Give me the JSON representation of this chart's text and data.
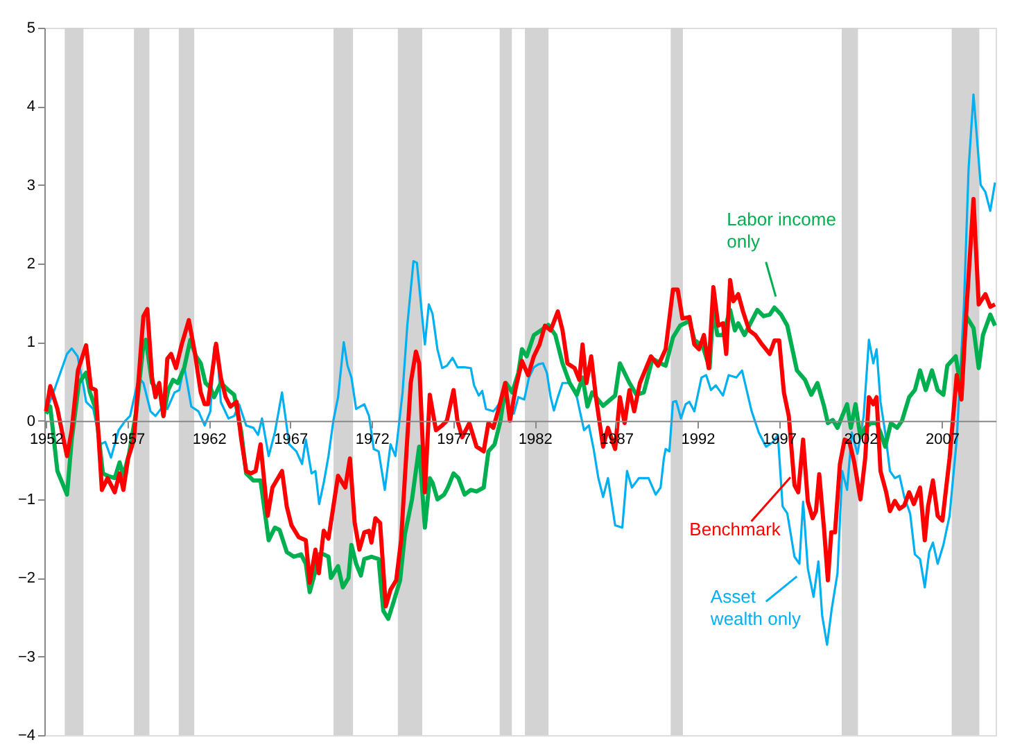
{
  "chart_data": {
    "type": "line",
    "xlim": [
      1951.9,
      2010.3
    ],
    "ylim": [
      -4,
      5
    ],
    "xticks": [
      1952,
      1957,
      1962,
      1967,
      1972,
      1977,
      1982,
      1987,
      1992,
      1997,
      2002,
      2007
    ],
    "yticks": [
      -4,
      -3,
      -2,
      -1,
      0,
      1,
      2,
      3,
      4,
      5
    ],
    "grid": false,
    "legend": false,
    "marker": "none",
    "line_style": "solid",
    "bands": [
      {
        "axis": "x",
        "from": 1953.15,
        "to": 1954.3,
        "color": "#d3d3d3"
      },
      {
        "axis": "x",
        "from": 1957.4,
        "to": 1958.35,
        "color": "#d3d3d3"
      },
      {
        "axis": "x",
        "from": 1960.15,
        "to": 1961.1,
        "color": "#d3d3d3"
      },
      {
        "axis": "x",
        "from": 1969.65,
        "to": 1970.85,
        "color": "#d3d3d3"
      },
      {
        "axis": "x",
        "from": 1973.6,
        "to": 1975.1,
        "color": "#d3d3d3"
      },
      {
        "axis": "x",
        "from": 1979.85,
        "to": 1980.6,
        "color": "#d3d3d3"
      },
      {
        "axis": "x",
        "from": 1981.4,
        "to": 1982.85,
        "color": "#d3d3d3"
      },
      {
        "axis": "x",
        "from": 1990.35,
        "to": 1991.1,
        "color": "#d3d3d3"
      },
      {
        "axis": "x",
        "from": 2000.85,
        "to": 2001.85,
        "color": "#d3d3d3"
      },
      {
        "axis": "x",
        "from": 2007.6,
        "to": 2009.3,
        "color": "#d3d3d3"
      }
    ],
    "series": [
      {
        "name": "Benchmark",
        "color": "#ff0000",
        "x": [
          1952.0,
          1952.26,
          1952.7,
          1953.14,
          1953.29,
          1953.58,
          1953.96,
          1954.46,
          1954.76,
          1955.05,
          1955.43,
          1955.78,
          1956.22,
          1956.52,
          1956.75,
          1957.04,
          1957.4,
          1957.98,
          1958.22,
          1958.51,
          1958.72,
          1958.95,
          1959.21,
          1959.45,
          1959.68,
          1959.98,
          1960.33,
          1960.77,
          1961.15,
          1961.5,
          1961.74,
          1961.94,
          1962.44,
          1962.73,
          1963.03,
          1963.32,
          1963.7,
          1963.99,
          1964.29,
          1964.58,
          1964.87,
          1965.17,
          1965.61,
          1965.9,
          1966.49,
          1966.78,
          1967.07,
          1967.51,
          1967.95,
          1968.19,
          1968.54,
          1968.75,
          1969.05,
          1969.34,
          1969.93,
          1970.37,
          1970.66,
          1970.95,
          1971.24,
          1971.54,
          1971.83,
          1971.98,
          1972.22,
          1972.51,
          1972.86,
          1973.15,
          1973.5,
          1973.8,
          1974.03,
          1974.39,
          1974.71,
          1974.91,
          1975.26,
          1975.56,
          1975.94,
          1976.32,
          1976.61,
          1977.02,
          1977.26,
          1977.55,
          1977.99,
          1978.43,
          1978.87,
          1979.16,
          1979.46,
          1979.75,
          1980.19,
          1980.48,
          1980.84,
          1981.22,
          1981.6,
          1981.95,
          1982.3,
          1982.63,
          1982.98,
          1983.42,
          1983.71,
          1984.01,
          1984.45,
          1984.74,
          1984.94,
          1985.18,
          1985.47,
          1985.76,
          1986.2,
          1986.5,
          1986.94,
          1987.23,
          1987.52,
          1987.82,
          1988.11,
          1988.46,
          1989.14,
          1989.58,
          1990.04,
          1990.49,
          1990.78,
          1991.07,
          1991.5,
          1991.8,
          1992.09,
          1992.39,
          1992.68,
          1992.97,
          1993.27,
          1993.56,
          1993.76,
          1994.0,
          1994.2,
          1994.5,
          1994.79,
          1995.17,
          1995.55,
          1995.96,
          1996.43,
          1996.72,
          1997.01,
          1997.3,
          1997.6,
          1997.95,
          1998.18,
          1998.48,
          1998.77,
          1999.06,
          1999.27,
          1999.47,
          1999.77,
          2000.0,
          2000.21,
          2000.44,
          2000.74,
          2001.03,
          2001.32,
          2001.61,
          2002.0,
          2002.29,
          2002.52,
          2002.79,
          2002.99,
          2003.23,
          2003.58,
          2003.81,
          2004.11,
          2004.4,
          2004.69,
          2004.99,
          2005.28,
          2005.66,
          2005.95,
          2006.15,
          2006.45,
          2006.74,
          2007.03,
          2007.47,
          2007.91,
          2008.2,
          2008.5,
          2008.94,
          2009.26,
          2009.67,
          2009.97,
          2010.26
        ],
        "values": [
          0.12,
          0.44,
          0.15,
          -0.3,
          -0.45,
          -0.12,
          0.64,
          0.96,
          0.42,
          0.39,
          -0.88,
          -0.73,
          -0.91,
          -0.67,
          -0.88,
          -0.48,
          -0.24,
          1.33,
          1.42,
          0.55,
          0.3,
          0.48,
          0.06,
          0.79,
          0.85,
          0.67,
          0.97,
          1.28,
          0.85,
          0.36,
          0.21,
          0.21,
          0.98,
          0.55,
          0.3,
          0.18,
          0.24,
          -0.24,
          -0.64,
          -0.67,
          -0.64,
          -0.3,
          -1.21,
          -0.85,
          -0.64,
          -1.09,
          -1.33,
          -1.48,
          -1.52,
          -2.06,
          -1.64,
          -1.94,
          -1.4,
          -1.5,
          -0.7,
          -0.85,
          -0.48,
          -1.3,
          -1.64,
          -1.42,
          -1.4,
          -1.55,
          -1.24,
          -1.3,
          -2.36,
          -2.15,
          -2.03,
          -1.52,
          -0.73,
          0.48,
          0.88,
          0.73,
          -0.91,
          0.33,
          -0.12,
          -0.06,
          0,
          0.39,
          0,
          -0.21,
          -0.03,
          -0.33,
          -0.39,
          -0.03,
          -0.09,
          0.12,
          0.48,
          0,
          0.42,
          0.76,
          0.58,
          0.82,
          0.97,
          1.21,
          1.15,
          1.39,
          1.15,
          0.73,
          0.67,
          0.52,
          0.97,
          0.48,
          0.82,
          0.3,
          -0.33,
          -0.09,
          -0.36,
          0.3,
          -0.03,
          0.39,
          0.12,
          0.48,
          0.82,
          0.7,
          0.91,
          1.67,
          1.67,
          1.3,
          1.32,
          0.97,
          0.91,
          1.09,
          0.67,
          1.7,
          1.21,
          1.24,
          0.85,
          1.79,
          1.52,
          1.61,
          1.39,
          1.15,
          1.09,
          0.97,
          0.85,
          1.02,
          1.02,
          0.36,
          0.06,
          -0.82,
          -0.91,
          -0.24,
          -1.03,
          -1.24,
          -1.15,
          -0.68,
          -1.39,
          -2.03,
          -1.42,
          -1.42,
          -0.55,
          -0.24,
          -0.27,
          -0.52,
          -1.0,
          -0.48,
          0.3,
          0.21,
          0.3,
          -0.64,
          -0.91,
          -1.15,
          -1.02,
          -1.12,
          -1.08,
          -0.91,
          -1.06,
          -0.85,
          -1.52,
          -1.09,
          -0.76,
          -1.21,
          -1.27,
          -0.48,
          0.58,
          0.27,
          1.39,
          2.82,
          1.48,
          1.61,
          1.45,
          1.48
        ]
      },
      {
        "name": "Labor income only",
        "color": "#00b050",
        "x": [
          1952.0,
          1952.26,
          1952.7,
          1953.29,
          1953.58,
          1954.02,
          1954.46,
          1954.7,
          1955.05,
          1955.49,
          1955.78,
          1956.22,
          1956.52,
          1956.75,
          1957.1,
          1957.54,
          1957.98,
          1958.13,
          1958.51,
          1959.0,
          1959.21,
          1959.5,
          1959.8,
          1960.09,
          1960.48,
          1960.86,
          1961.21,
          1961.5,
          1961.79,
          1962.09,
          1962.32,
          1962.73,
          1963.2,
          1963.55,
          1963.99,
          1964.29,
          1964.73,
          1965.17,
          1965.67,
          1966.05,
          1966.34,
          1966.78,
          1967.22,
          1967.66,
          1967.95,
          1968.19,
          1968.54,
          1968.75,
          1969.05,
          1969.34,
          1969.49,
          1969.93,
          1970.22,
          1970.57,
          1970.75,
          1971.04,
          1971.33,
          1971.54,
          1971.98,
          1972.42,
          1972.71,
          1973.01,
          1973.3,
          1973.74,
          1974.03,
          1974.47,
          1974.91,
          1975.26,
          1975.56,
          1975.73,
          1976.03,
          1976.44,
          1976.67,
          1977.02,
          1977.32,
          1977.7,
          1978.08,
          1978.43,
          1978.87,
          1979.16,
          1979.54,
          1979.9,
          1980.24,
          1980.62,
          1981.0,
          1981.22,
          1981.51,
          1981.95,
          1982.39,
          1982.83,
          1983.27,
          1983.71,
          1984.15,
          1984.59,
          1984.94,
          1985.24,
          1985.53,
          1986.2,
          1986.94,
          1987.23,
          1987.82,
          1988.25,
          1988.7,
          1989.23,
          1989.73,
          1990.04,
          1990.49,
          1990.93,
          1991.5,
          1991.8,
          1992.33,
          1992.74,
          1992.97,
          1993.21,
          1993.56,
          1994.0,
          1994.29,
          1994.5,
          1994.88,
          1995.17,
          1995.67,
          1996.05,
          1996.43,
          1996.72,
          1997.13,
          1997.51,
          1998.1,
          1998.6,
          1998.98,
          1999.36,
          1999.77,
          2000.0,
          2000.3,
          2000.59,
          2000.88,
          2001.18,
          2001.41,
          2001.7,
          2002.0,
          2002.29,
          2002.64,
          2002.99,
          2003.23,
          2003.52,
          2003.87,
          2004.25,
          2004.55,
          2004.99,
          2005.34,
          2005.66,
          2006.01,
          2006.39,
          2006.74,
          2007.09,
          2007.33,
          2007.85,
          2008.14,
          2008.5,
          2008.94,
          2009.26,
          2009.52,
          2009.97,
          2010.26
        ],
        "values": [
          0.09,
          0.18,
          -0.64,
          -0.94,
          -0.24,
          0.48,
          0.61,
          0.36,
          0.15,
          -0.67,
          -0.7,
          -0.73,
          -0.53,
          -0.7,
          -0.42,
          0.12,
          0.97,
          1.03,
          0.48,
          0.36,
          0.06,
          0.39,
          0.52,
          0.48,
          0.67,
          1.03,
          0.82,
          0.73,
          0.48,
          0.42,
          0.3,
          0.48,
          0.39,
          0.33,
          -0.15,
          -0.67,
          -0.76,
          -0.76,
          -1.52,
          -1.36,
          -1.39,
          -1.67,
          -1.73,
          -1.7,
          -1.82,
          -2.18,
          -1.91,
          -1.7,
          -1.7,
          -1.73,
          -2.0,
          -1.85,
          -2.12,
          -2.0,
          -1.58,
          -1.82,
          -1.97,
          -1.76,
          -1.73,
          -1.76,
          -2.42,
          -2.52,
          -2.33,
          -2.03,
          -1.45,
          -1.0,
          -0.33,
          -1.36,
          -0.73,
          -0.79,
          -1.0,
          -0.94,
          -0.85,
          -0.67,
          -0.73,
          -0.94,
          -0.88,
          -0.9,
          -0.85,
          -0.39,
          -0.3,
          0.0,
          0.48,
          0.36,
          0.61,
          0.91,
          0.82,
          1.09,
          1.15,
          1.22,
          1.09,
          0.73,
          0.48,
          0.33,
          0.55,
          0.18,
          0.36,
          0.19,
          0.32,
          0.73,
          0.48,
          0.33,
          0.36,
          0.79,
          0.73,
          0.7,
          1.06,
          1.21,
          1.27,
          1.03,
          0.94,
          0.67,
          1.45,
          1.09,
          1.09,
          1.41,
          1.15,
          1.24,
          1.09,
          1.21,
          1.41,
          1.33,
          1.35,
          1.44,
          1.35,
          1.21,
          0.64,
          0.52,
          0.33,
          0.48,
          0.18,
          -0.03,
          0.01,
          -0.09,
          0.06,
          0.21,
          -0.09,
          0.21,
          -0.21,
          -0.09,
          -0.03,
          -0.03,
          -0.15,
          -0.33,
          -0.03,
          -0.09,
          0.0,
          0.3,
          0.39,
          0.64,
          0.39,
          0.64,
          0.39,
          0.33,
          0.7,
          0.82,
          0.45,
          1.33,
          1.18,
          0.67,
          1.09,
          1.35,
          1.21
        ]
      },
      {
        "name": "Asset wealth only",
        "color": "#00b0f0",
        "x": [
          1952.0,
          1952.12,
          1952.56,
          1953.29,
          1953.58,
          1953.94,
          1954.32,
          1954.46,
          1954.9,
          1955.34,
          1955.64,
          1955.99,
          1956.46,
          1956.87,
          1957.16,
          1957.69,
          1957.98,
          1958.42,
          1958.72,
          1959.16,
          1959.45,
          1959.89,
          1960.18,
          1960.48,
          1960.92,
          1961.36,
          1961.74,
          1962.09,
          1962.32,
          1962.53,
          1962.73,
          1963.2,
          1963.55,
          1963.85,
          1964.29,
          1964.73,
          1965.02,
          1965.26,
          1965.67,
          1966.05,
          1966.49,
          1966.93,
          1967.37,
          1967.72,
          1967.95,
          1968.3,
          1968.54,
          1968.77,
          1969.05,
          1969.34,
          1969.64,
          1969.93,
          1970.28,
          1970.51,
          1970.75,
          1971.04,
          1971.54,
          1971.83,
          1972.12,
          1972.42,
          1972.8,
          1973.15,
          1973.45,
          1973.89,
          1974.18,
          1974.56,
          1974.77,
          1975.26,
          1975.5,
          1975.73,
          1976.03,
          1976.32,
          1976.61,
          1976.96,
          1977.26,
          1977.7,
          1978.08,
          1978.28,
          1978.57,
          1978.78,
          1979.01,
          1979.46,
          1979.66,
          1979.9,
          1980.19,
          1980.48,
          1980.72,
          1981.0,
          1981.36,
          1981.65,
          1981.95,
          1982.24,
          1982.51,
          1982.75,
          1982.98,
          1983.18,
          1983.42,
          1983.71,
          1984.15,
          1984.59,
          1985.03,
          1985.33,
          1985.62,
          1985.91,
          1986.2,
          1986.5,
          1986.94,
          1987.38,
          1987.67,
          1987.97,
          1988.4,
          1988.99,
          1989.43,
          1989.73,
          1989.93,
          1990.04,
          1990.27,
          1990.49,
          1990.69,
          1990.98,
          1991.27,
          1991.5,
          1991.8,
          1992.24,
          1992.53,
          1992.82,
          1993.12,
          1993.56,
          1993.91,
          1994.38,
          1994.73,
          1995.32,
          1995.76,
          1996.2,
          1996.64,
          1996.93,
          1997.22,
          1997.51,
          1997.95,
          1998.25,
          1998.48,
          1998.77,
          1999.12,
          1999.42,
          1999.65,
          1999.95,
          2000.24,
          2000.59,
          2000.88,
          2001.18,
          2001.47,
          2001.82,
          2002.2,
          2002.52,
          2002.79,
          2002.99,
          2003.23,
          2003.52,
          2003.81,
          2004.11,
          2004.4,
          2004.69,
          2005.05,
          2005.34,
          2005.66,
          2005.95,
          2006.22,
          2006.45,
          2006.74,
          2007.09,
          2007.47,
          2007.91,
          2008.35,
          2008.64,
          2008.94,
          2009.38,
          2009.67,
          2009.97,
          2010.26
        ],
        "values": [
          0.24,
          0.18,
          0.42,
          0.85,
          0.92,
          0.82,
          0.42,
          0.24,
          0.15,
          -0.3,
          -0.27,
          -0.47,
          -0.12,
          0.0,
          0.06,
          0.55,
          0.48,
          0.12,
          0.06,
          0.18,
          0.15,
          0.36,
          0.39,
          0.7,
          0.18,
          0.12,
          -0.06,
          0.12,
          0.94,
          0.85,
          0.24,
          0.03,
          0.06,
          0.21,
          -0.06,
          -0.09,
          -0.18,
          0.03,
          -0.45,
          -0.15,
          0.36,
          -0.3,
          -0.39,
          -0.55,
          -0.24,
          -0.67,
          -0.64,
          -1.06,
          -0.79,
          -0.45,
          0.0,
          0.3,
          1.0,
          0.7,
          0.55,
          0.15,
          0.21,
          0.06,
          -0.36,
          -0.39,
          -0.88,
          -0.3,
          -0.45,
          0.36,
          1.21,
          2.03,
          2.01,
          0.97,
          1.48,
          1.36,
          0.91,
          0.67,
          0.7,
          0.8,
          0.68,
          0.68,
          0.67,
          0.45,
          0.32,
          0.38,
          0.15,
          0.12,
          0.17,
          0.24,
          0.42,
          0.11,
          0.09,
          0.3,
          0.27,
          0.55,
          0.68,
          0.72,
          0.73,
          0.61,
          0.3,
          0.13,
          0.3,
          0.48,
          0.48,
          0.3,
          -0.12,
          -0.06,
          -0.36,
          -0.73,
          -0.97,
          -0.73,
          -1.33,
          -1.36,
          -0.64,
          -0.85,
          -0.73,
          -0.73,
          -0.94,
          -0.85,
          -0.48,
          -0.36,
          -0.39,
          0.24,
          0.25,
          0.03,
          0.21,
          0.24,
          0.12,
          0.55,
          0.58,
          0.39,
          0.45,
          0.32,
          0.58,
          0.55,
          0.64,
          0.12,
          -0.15,
          -0.33,
          -0.27,
          -0.18,
          -1.09,
          -1.18,
          -1.73,
          -1.82,
          -1.03,
          -1.88,
          -2.24,
          -1.79,
          -2.48,
          -2.85,
          -2.39,
          -1.94,
          -0.64,
          -0.88,
          -0.15,
          -0.42,
          0.06,
          1.03,
          0.73,
          0.91,
          0.24,
          -0.15,
          -0.64,
          -0.73,
          -0.7,
          -0.97,
          -1.18,
          -1.7,
          -1.76,
          -2.12,
          -1.67,
          -1.55,
          -1.82,
          -1.58,
          -1.21,
          -0.24,
          1.45,
          3.21,
          4.15,
          3.0,
          2.91,
          2.67,
          3.03
        ]
      }
    ]
  }
}
